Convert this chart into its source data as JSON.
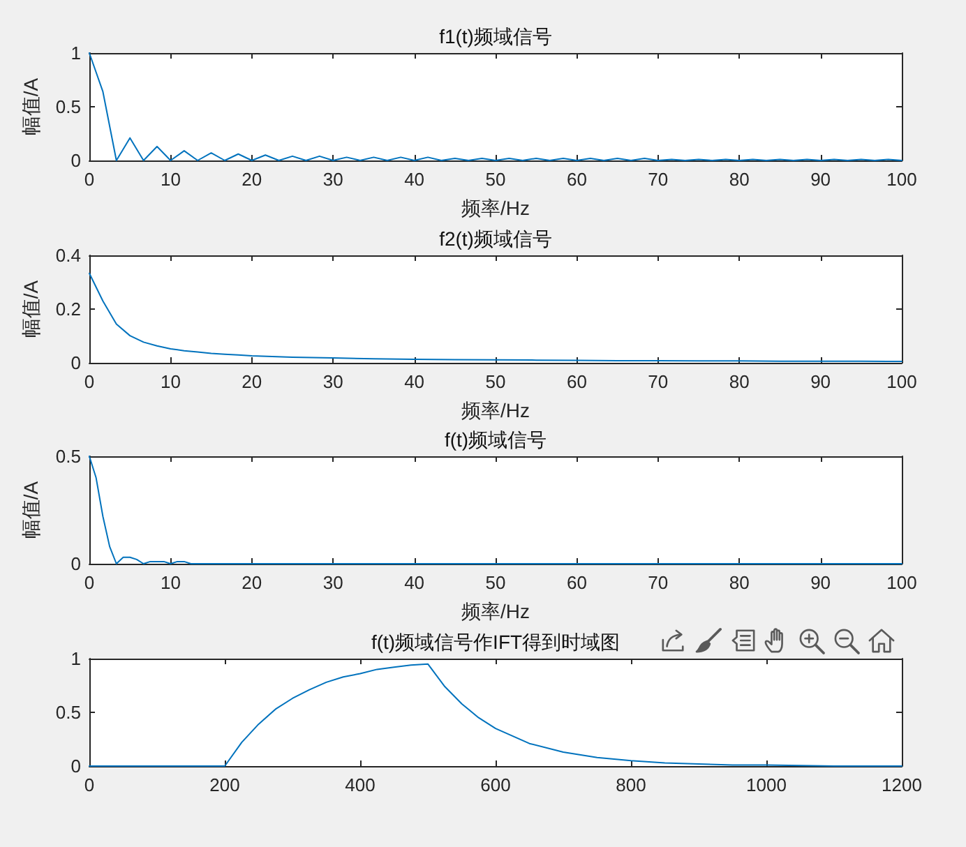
{
  "chart_data": [
    {
      "type": "line",
      "title": "f1(t)频域信号",
      "xlabel": "频率/Hz",
      "ylabel": "幅值/A",
      "color": "#0072bd",
      "xlim": [
        0,
        100
      ],
      "xticks": [
        0,
        10,
        20,
        30,
        40,
        50,
        60,
        70,
        80,
        90,
        100
      ],
      "ylim": [
        0,
        1
      ],
      "yticks": [
        0,
        0.5,
        1
      ],
      "x": [
        0,
        1.67,
        3.33,
        5,
        6.67,
        8.33,
        10,
        11.67,
        13.33,
        15,
        16.67,
        18.33,
        20,
        21.67,
        23.33,
        25,
        26.67,
        28.33,
        30,
        31.67,
        33.33,
        35,
        36.67,
        38.33,
        40,
        41.67,
        43.33,
        45,
        46.67,
        48.33,
        50,
        51.67,
        53.33,
        55,
        56.67,
        58.33,
        60,
        61.67,
        63.33,
        65,
        66.67,
        68.33,
        70,
        71.67,
        73.33,
        75,
        76.67,
        78.33,
        80,
        81.67,
        83.33,
        85,
        86.67,
        88.33,
        90,
        91.67,
        93.33,
        95,
        96.67,
        98.33,
        100
      ],
      "values": [
        1,
        0.64,
        0,
        0.21,
        0,
        0.13,
        0,
        0.09,
        0,
        0.07,
        0,
        0.06,
        0,
        0.05,
        0,
        0.04,
        0,
        0.04,
        0,
        0.03,
        0,
        0.03,
        0,
        0.03,
        0,
        0.03,
        0,
        0.02,
        0,
        0.02,
        0,
        0.02,
        0,
        0.02,
        0,
        0.02,
        0,
        0.02,
        0,
        0.02,
        0,
        0.02,
        0,
        0.01,
        0,
        0.01,
        0,
        0.01,
        0,
        0.01,
        0,
        0.01,
        0,
        0.01,
        0,
        0.01,
        0,
        0.01,
        0,
        0.01,
        0
      ]
    },
    {
      "type": "line",
      "title": "f2(t)频域信号",
      "xlabel": "频率/Hz",
      "ylabel": "幅值/A",
      "color": "#0072bd",
      "xlim": [
        0,
        100
      ],
      "xticks": [
        0,
        10,
        20,
        30,
        40,
        50,
        60,
        70,
        80,
        90,
        100
      ],
      "ylim": [
        0,
        0.4
      ],
      "yticks": [
        0,
        0.2,
        0.4
      ],
      "x": [
        0,
        1.67,
        3.33,
        5,
        6.67,
        8.33,
        10,
        11.67,
        13.33,
        15,
        16.67,
        18.33,
        20,
        25,
        30,
        35,
        40,
        45,
        50,
        55,
        60,
        65,
        70,
        75,
        80,
        85,
        90,
        95,
        100
      ],
      "values": [
        0.333,
        0.23,
        0.144,
        0.101,
        0.077,
        0.063,
        0.052,
        0.045,
        0.04,
        0.035,
        0.032,
        0.029,
        0.026,
        0.021,
        0.018,
        0.015,
        0.013,
        0.012,
        0.011,
        0.01,
        0.009,
        0.008,
        0.008,
        0.007,
        0.007,
        0.006,
        0.006,
        0.006,
        0.005
      ]
    },
    {
      "type": "line",
      "title": "f(t)频域信号",
      "xlabel": "频率/Hz",
      "ylabel": "幅值/A",
      "color": "#0072bd",
      "xlim": [
        0,
        100
      ],
      "xticks": [
        0,
        10,
        20,
        30,
        40,
        50,
        60,
        70,
        80,
        90,
        100
      ],
      "ylim": [
        0,
        0.5
      ],
      "yticks": [
        0,
        0.5
      ],
      "x": [
        0,
        0.83,
        1.67,
        2.5,
        3.33,
        4.17,
        5,
        5.83,
        6.67,
        7.5,
        8.33,
        9.17,
        10,
        10.83,
        11.67,
        12.5,
        13.33,
        20,
        30,
        40,
        50,
        60,
        70,
        80,
        90,
        100
      ],
      "values": [
        0.5,
        0.4,
        0.22,
        0.08,
        0,
        0.03,
        0.03,
        0.02,
        0,
        0.01,
        0.01,
        0.01,
        0,
        0.01,
        0.01,
        0,
        0,
        0,
        0,
        0,
        0,
        0,
        0,
        0,
        0,
        0
      ]
    },
    {
      "type": "line",
      "title": "f(t)频域信号作IFT得到时域图",
      "color": "#0072bd",
      "xlim": [
        0,
        1200
      ],
      "xticks": [
        0,
        200,
        400,
        600,
        800,
        1000,
        1200
      ],
      "ylim": [
        0,
        1
      ],
      "yticks": [
        0,
        0.5,
        1
      ],
      "x": [
        0,
        200,
        225,
        250,
        275,
        300,
        325,
        350,
        375,
        400,
        425,
        450,
        475,
        500,
        525,
        550,
        575,
        600,
        650,
        700,
        750,
        800,
        850,
        900,
        950,
        1000,
        1100,
        1200
      ],
      "values": [
        0,
        0,
        0.22,
        0.39,
        0.53,
        0.63,
        0.71,
        0.78,
        0.83,
        0.86,
        0.9,
        0.92,
        0.94,
        0.95,
        0.74,
        0.58,
        0.45,
        0.35,
        0.21,
        0.13,
        0.08,
        0.05,
        0.03,
        0.02,
        0.01,
        0.01,
        0,
        0
      ]
    }
  ]
}
